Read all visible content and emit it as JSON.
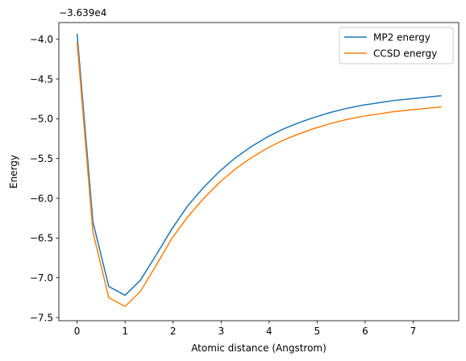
{
  "chart_data": {
    "type": "line",
    "title": "",
    "xlabel": "Atomic distance (Angstrom)",
    "ylabel": "Energy",
    "offset_text": "−3.639e4",
    "xlim": [
      -0.38,
      7.95
    ],
    "ylim": [
      -7.54,
      -3.79
    ],
    "x_ticks": [
      0,
      1,
      2,
      3,
      4,
      5,
      6,
      7
    ],
    "x_tick_labels": [
      "0",
      "1",
      "2",
      "3",
      "4",
      "5",
      "6",
      "7"
    ],
    "y_ticks": [
      -4.0,
      -4.5,
      -5.0,
      -5.5,
      -6.0,
      -6.5,
      -7.0,
      -7.5
    ],
    "y_tick_labels": [
      "−4.0",
      "−4.5",
      "−5.0",
      "−5.5",
      "−6.0",
      "−6.5",
      "−7.0",
      "−7.5"
    ],
    "grid": false,
    "legend_position": "upper right",
    "x": [
      0.0,
      0.33,
      0.66,
      1.0,
      1.32,
      1.65,
      1.98,
      2.31,
      2.64,
      2.97,
      3.3,
      3.63,
      3.96,
      4.29,
      4.62,
      4.95,
      5.28,
      5.61,
      5.94,
      6.27,
      6.6,
      6.93,
      7.26,
      7.59
    ],
    "series": [
      {
        "name": "MP2 energy",
        "color": "#1f77b4",
        "values": [
          -3.93,
          -6.3,
          -7.11,
          -7.22,
          -7.03,
          -6.71,
          -6.38,
          -6.09,
          -5.86,
          -5.66,
          -5.49,
          -5.35,
          -5.23,
          -5.13,
          -5.05,
          -4.98,
          -4.92,
          -4.87,
          -4.83,
          -4.8,
          -4.77,
          -4.75,
          -4.73,
          -4.71
        ]
      },
      {
        "name": "CCSD energy",
        "color": "#ff7f0e",
        "values": [
          -4.03,
          -6.43,
          -7.25,
          -7.36,
          -7.17,
          -6.84,
          -6.5,
          -6.23,
          -6.0,
          -5.8,
          -5.63,
          -5.49,
          -5.37,
          -5.27,
          -5.19,
          -5.12,
          -5.06,
          -5.01,
          -4.97,
          -4.94,
          -4.91,
          -4.89,
          -4.87,
          -4.85
        ]
      }
    ]
  }
}
